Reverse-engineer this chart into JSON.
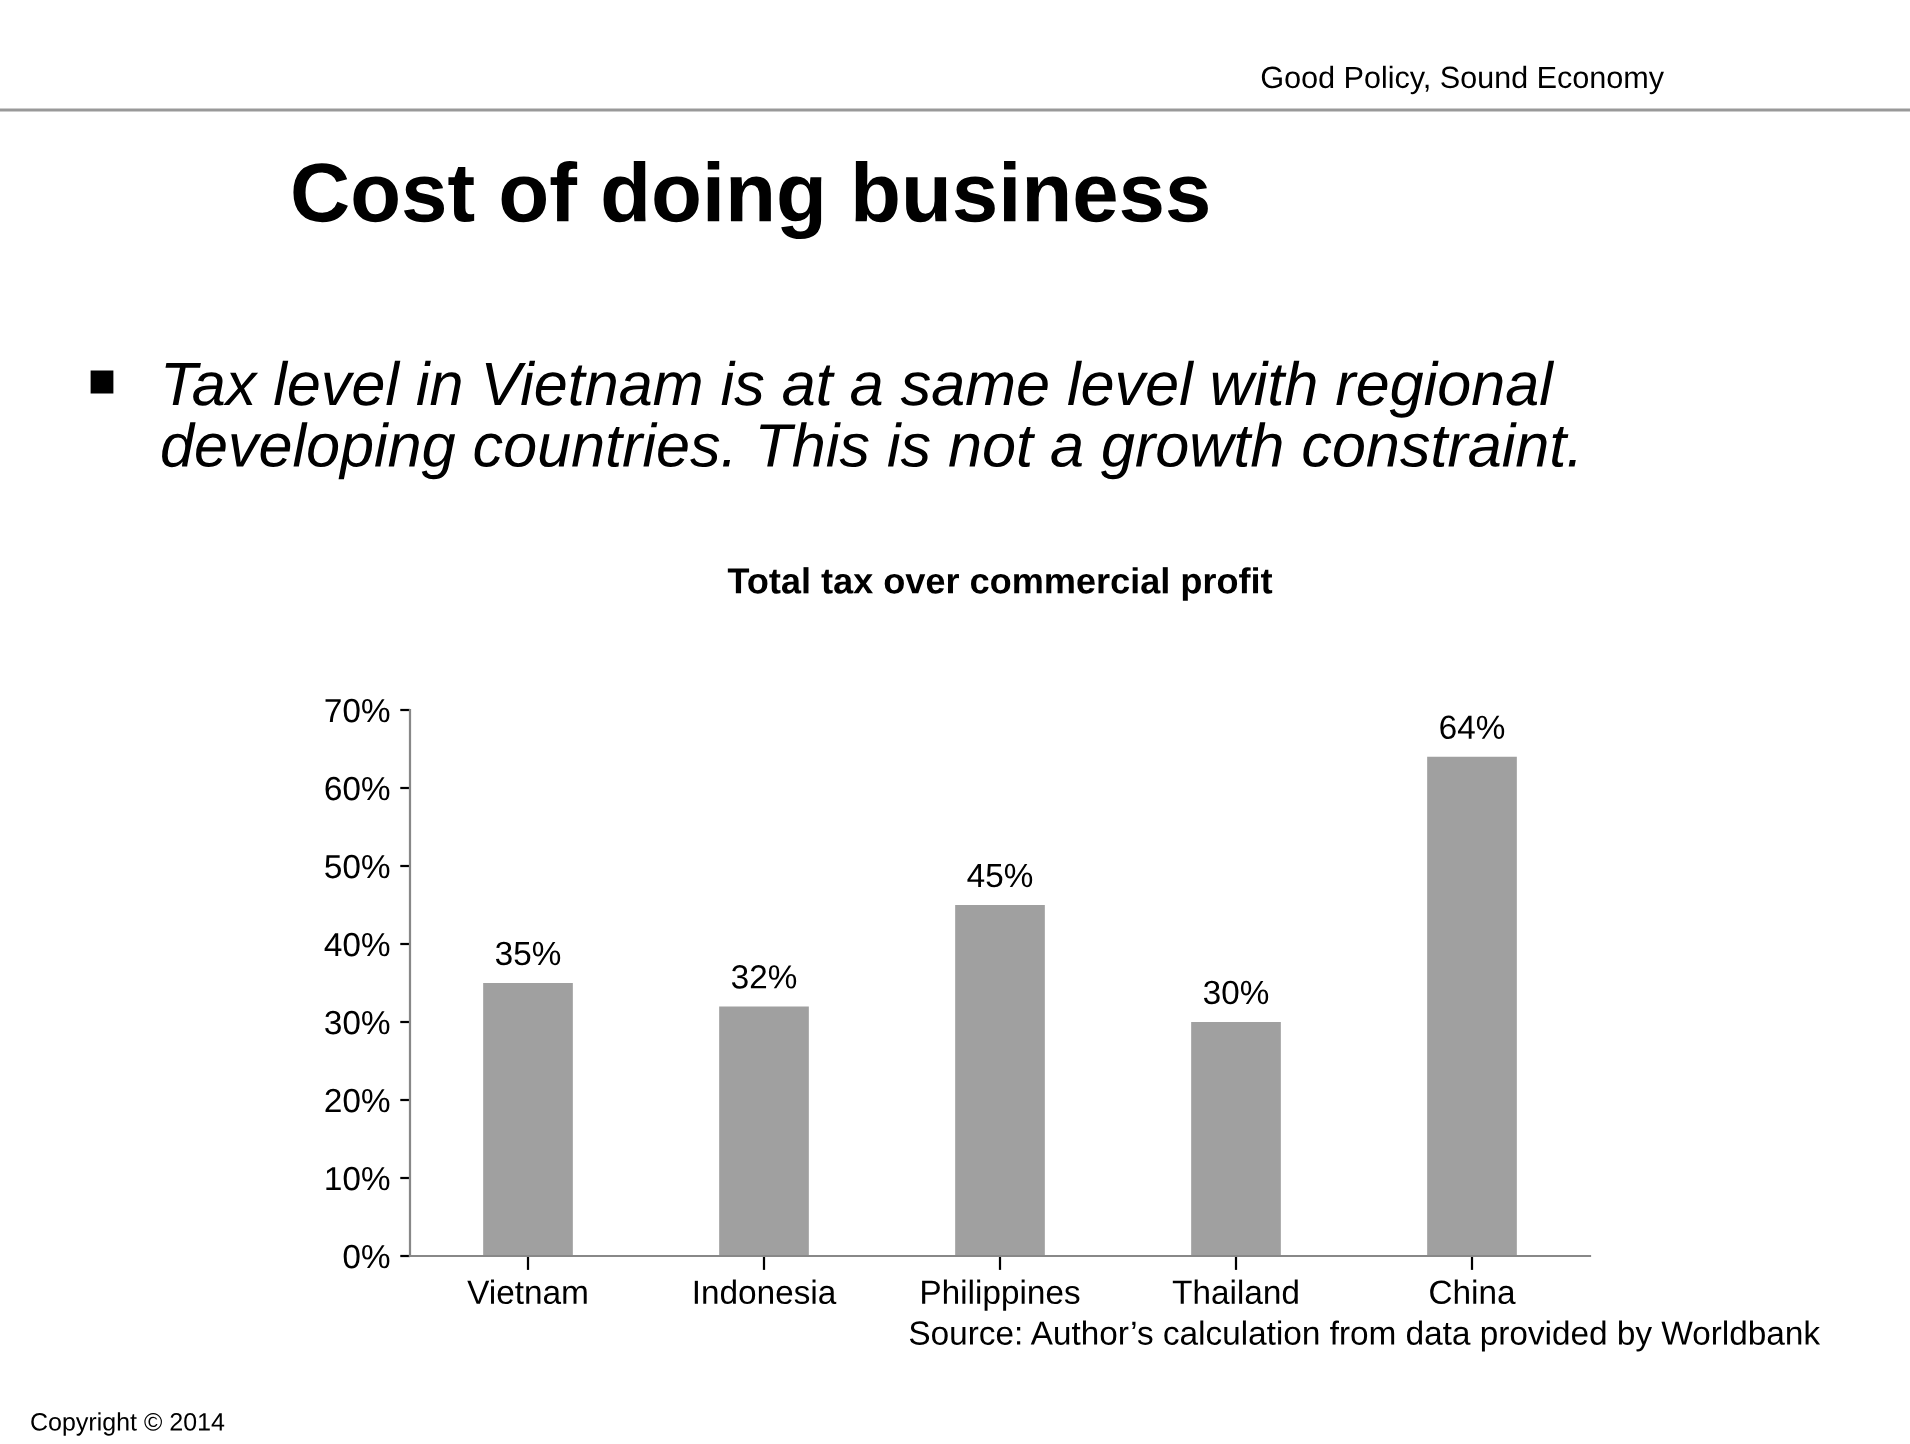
{
  "chart_data": {
    "type": "bar",
    "title": "Total tax over commercial profit",
    "categories": [
      "Vietnam",
      "Indonesia",
      "Philippines",
      "Thailand",
      "China"
    ],
    "values": [
      35,
      32,
      45,
      30,
      64
    ],
    "color": "#a0a0a0",
    "data_labels": true,
    "value_labels": [
      "35%",
      "32%",
      "45%",
      "30%",
      "64%"
    ],
    "ylim": [
      0,
      70
    ],
    "yticks": [
      {
        "value": 0,
        "label": "0%"
      },
      {
        "value": 10,
        "label": "10%"
      },
      {
        "value": 20,
        "label": "20%"
      },
      {
        "value": 30,
        "label": "30%"
      },
      {
        "value": 40,
        "label": "40%"
      },
      {
        "value": 50,
        "label": "50%"
      },
      {
        "value": 60,
        "label": "60%"
      },
      {
        "value": 70,
        "label": "70%"
      }
    ],
    "grid": false,
    "legend": false,
    "annotations": [
      "Good Policy, Sound Economy",
      "Cost of doing business",
      "Tax level in Vietnam is at a same level with regional\ndeveloping countries. This is not a growth constraint.",
      "Source: Author’s calculation from data provided by Worldbank",
      "Copyright © 2014"
    ]
  }
}
